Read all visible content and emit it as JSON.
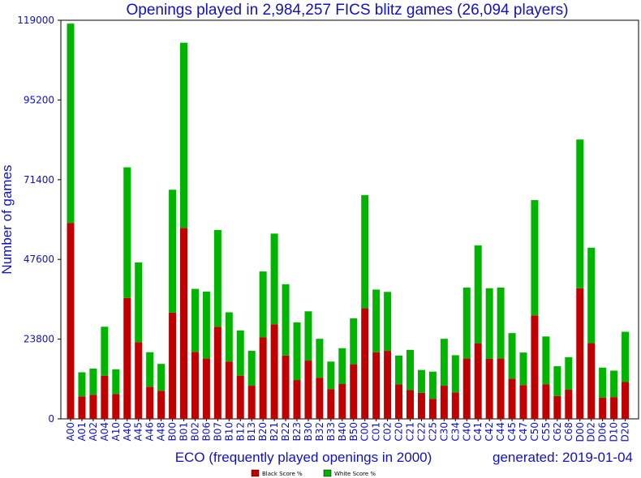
{
  "chart_data": {
    "type": "bar",
    "stacked": true,
    "title": "Openings played in 2,984,257 FICS blitz games (26,094 players)",
    "xlabel": "ECO (frequently played openings in 2000)",
    "ylabel": "Number of games",
    "footer": "generated: 2019-01-04",
    "ylim": [
      0,
      119000
    ],
    "yticks": [
      "0",
      "23800",
      "47600",
      "71400",
      "95200",
      "119000"
    ],
    "grid": false,
    "legend_position": "bottom-center",
    "categories": [
      "A00",
      "A01",
      "A02",
      "A04",
      "A10",
      "A40",
      "A45",
      "A46",
      "A48",
      "B00",
      "B01",
      "B02",
      "B06",
      "B07",
      "B10",
      "B12",
      "B13",
      "B20",
      "B21",
      "B22",
      "B23",
      "B30",
      "B32",
      "B33",
      "B40",
      "B50",
      "C00",
      "C01",
      "C02",
      "C20",
      "C21",
      "C22",
      "C25",
      "C30",
      "C34",
      "C40",
      "C41",
      "C42",
      "C44",
      "C45",
      "C47",
      "C50",
      "C55",
      "C62",
      "C68",
      "D00",
      "D02",
      "D06",
      "D10",
      "D20"
    ],
    "series": [
      {
        "name": "Black Score %",
        "color": "#c00000",
        "values": [
          58500,
          6700,
          7200,
          12900,
          7400,
          36100,
          22900,
          9600,
          8400,
          31700,
          57000,
          20000,
          18000,
          27500,
          17100,
          12900,
          9900,
          24300,
          28200,
          18900,
          11600,
          17400,
          12300,
          8900,
          10400,
          16300,
          33000,
          19900,
          20300,
          10300,
          8600,
          7800,
          6000,
          9900,
          7900,
          18000,
          22500,
          17900,
          18000,
          12000,
          10100,
          30900,
          10300,
          6800,
          8700,
          39000,
          22600,
          6300,
          6500,
          11000
        ]
      },
      {
        "name": "White Score %",
        "color": "#00b400",
        "values": [
          59500,
          7200,
          7800,
          14600,
          7400,
          39000,
          23800,
          10300,
          8000,
          36700,
          55300,
          18800,
          20000,
          28900,
          14700,
          13500,
          10400,
          19700,
          27100,
          21300,
          17200,
          14700,
          11600,
          8200,
          10700,
          13700,
          33800,
          18700,
          17600,
          8600,
          12000,
          6800,
          8100,
          14000,
          11100,
          21200,
          29300,
          21100,
          21200,
          13600,
          9700,
          34400,
          14300,
          8900,
          9700,
          44400,
          28500,
          9000,
          7900,
          15000
        ]
      }
    ]
  }
}
